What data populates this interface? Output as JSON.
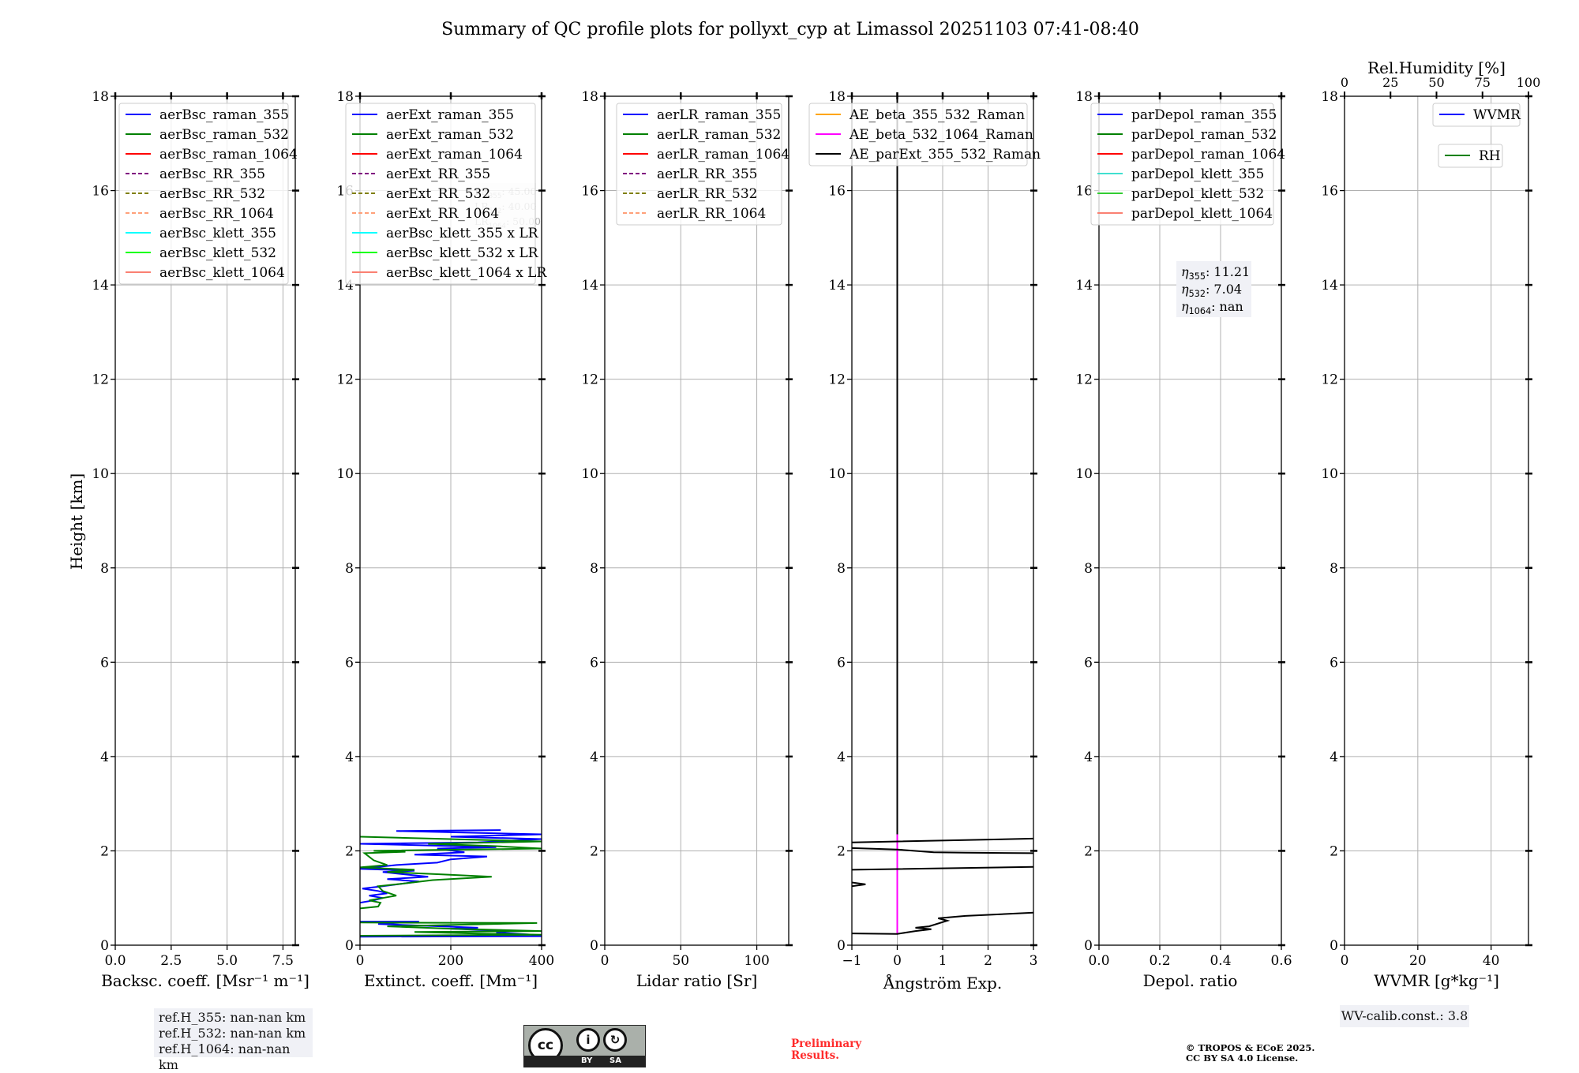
{
  "title": "Summary of QC profile plots for pollyxt_cyp at Limassol 20251103 07:41-08:40",
  "ylabel": "Height [km]",
  "chart_data": [
    {
      "type": "line",
      "xlabel": "Backsc. coeff. [Msr⁻¹ m⁻¹]",
      "xlim": [
        0,
        8.05
      ],
      "xticks": [
        0,
        2.5,
        5,
        7.5
      ],
      "xticklabels": [
        "0.0",
        "2.5",
        "5.0",
        "7.5"
      ],
      "ylim": [
        0,
        18
      ],
      "yticks": [
        0,
        2,
        4,
        6,
        8,
        10,
        12,
        14,
        16,
        18
      ],
      "grid": true,
      "legend_loc": "upper-left",
      "legend": [
        {
          "label": "aerBsc_raman_355",
          "color": "#0000ff",
          "dash": false
        },
        {
          "label": "aerBsc_raman_532",
          "color": "#008000",
          "dash": false
        },
        {
          "label": "aerBsc_raman_1064",
          "color": "#ff0000",
          "dash": false
        },
        {
          "label": "aerBsc_RR_355",
          "color": "#800080",
          "dash": true
        },
        {
          "label": "aerBsc_RR_532",
          "color": "#808000",
          "dash": true
        },
        {
          "label": "aerBsc_RR_1064",
          "color": "#ffa07a",
          "dash": true
        },
        {
          "label": "aerBsc_klett_355",
          "color": "#00ffff",
          "dash": false
        },
        {
          "label": "aerBsc_klett_532",
          "color": "#00ff00",
          "dash": false
        },
        {
          "label": "aerBsc_klett_1064",
          "color": "#fa8072",
          "dash": false
        }
      ],
      "series": []
    },
    {
      "type": "line",
      "xlabel": "Extinct. coeff. [Mm⁻¹]",
      "xlim": [
        0,
        400
      ],
      "xticks": [
        0,
        200,
        400
      ],
      "xticklabels": [
        "0",
        "200",
        "400"
      ],
      "ylim": [
        0,
        18
      ],
      "yticks": [
        0,
        2,
        4,
        6,
        8,
        10,
        12,
        14,
        16,
        18
      ],
      "grid": true,
      "legend_loc": "upper-left",
      "legend": [
        {
          "label": "aerExt_raman_355",
          "color": "#0000ff",
          "dash": false
        },
        {
          "label": "aerExt_raman_532",
          "color": "#008000",
          "dash": false
        },
        {
          "label": "aerExt_raman_1064",
          "color": "#ff0000",
          "dash": false
        },
        {
          "label": "aerExt_RR_355",
          "color": "#800080",
          "dash": true
        },
        {
          "label": "aerExt_RR_532",
          "color": "#808000",
          "dash": true
        },
        {
          "label": "aerExt_RR_1064",
          "color": "#ffa07a",
          "dash": true
        },
        {
          "label": "aerBsc_klett_355 x LR",
          "color": "#00ffff",
          "dash": false
        },
        {
          "label": "aerBsc_klett_532 x LR",
          "color": "#00ff00",
          "dash": false
        },
        {
          "label": "aerBsc_klett_1064 x LR",
          "color": "#fa8072",
          "dash": false
        }
      ],
      "annotation": [
        {
          "prefix": "LR",
          "sub": "355",
          "value": ": 45.00"
        },
        {
          "prefix": "LR",
          "sub": "532",
          "value": ": 40.00"
        },
        {
          "prefix": "LR",
          "sub": "1064",
          "value": ": 50.00"
        }
      ],
      "series": [
        {
          "name": "aerExt_raman_355",
          "color": "#0000ff",
          "points": [
            [
              0,
              0.18
            ],
            [
              400,
              0.19
            ],
            [
              380,
              0.22
            ],
            [
              300,
              0.27
            ],
            [
              330,
              0.3
            ],
            [
              200,
              0.35
            ],
            [
              260,
              0.37
            ],
            [
              120,
              0.42
            ],
            [
              40,
              0.45
            ],
            [
              130,
              0.5
            ],
            [
              0,
              0.5
            ],
            null,
            [
              0,
              0.9
            ],
            [
              30,
              0.95
            ],
            [
              50,
              1.0
            ],
            [
              20,
              1.05
            ],
            [
              60,
              1.1
            ],
            [
              40,
              1.15
            ],
            [
              5,
              1.2
            ],
            [
              50,
              1.25
            ],
            [
              130,
              1.35
            ],
            [
              60,
              1.4
            ],
            [
              150,
              1.45
            ],
            [
              50,
              1.55
            ],
            [
              120,
              1.58
            ],
            [
              0,
              1.62
            ],
            [
              80,
              1.7
            ],
            [
              170,
              1.75
            ],
            [
              200,
              1.82
            ],
            [
              280,
              1.88
            ],
            [
              120,
              1.92
            ],
            [
              230,
              1.97
            ],
            [
              170,
              2.05
            ],
            [
              300,
              2.08
            ],
            [
              0,
              2.15
            ],
            [
              260,
              2.18
            ],
            [
              400,
              2.25
            ],
            [
              200,
              2.3
            ],
            [
              400,
              2.35
            ],
            [
              80,
              2.42
            ],
            [
              310,
              2.44
            ]
          ]
        },
        {
          "name": "aerExt_raman_532",
          "color": "#008000",
          "points": [
            [
              0,
              0.2
            ],
            [
              400,
              0.22
            ],
            [
              250,
              0.25
            ],
            [
              120,
              0.28
            ],
            [
              400,
              0.3
            ],
            [
              200,
              0.35
            ],
            [
              60,
              0.4
            ],
            [
              390,
              0.47
            ],
            [
              0,
              0.48
            ],
            null,
            [
              0,
              0.78
            ],
            [
              40,
              0.82
            ],
            [
              45,
              0.9
            ],
            [
              20,
              0.95
            ],
            [
              80,
              1.05
            ],
            [
              50,
              1.15
            ],
            [
              40,
              1.25
            ],
            [
              90,
              1.3
            ],
            [
              160,
              1.38
            ],
            [
              290,
              1.45
            ],
            [
              180,
              1.5
            ],
            [
              60,
              1.55
            ],
            [
              120,
              1.6
            ],
            [
              0,
              1.65
            ],
            [
              60,
              1.7
            ],
            [
              30,
              1.8
            ],
            [
              10,
              1.95
            ],
            [
              100,
              1.98
            ],
            [
              30,
              2.0
            ],
            [
              400,
              2.05
            ],
            [
              300,
              2.1
            ],
            [
              150,
              2.15
            ],
            [
              400,
              2.2
            ],
            [
              0,
              2.3
            ]
          ]
        }
      ]
    },
    {
      "type": "line",
      "xlabel": "Lidar ratio [Sr]",
      "xlim": [
        0,
        121
      ],
      "xticks": [
        0,
        50,
        100
      ],
      "xticklabels": [
        "0",
        "50",
        "100"
      ],
      "ylim": [
        0,
        18
      ],
      "yticks": [
        0,
        2,
        4,
        6,
        8,
        10,
        12,
        14,
        16,
        18
      ],
      "grid": true,
      "legend_loc": "upper-right",
      "legend": [
        {
          "label": "aerLR_raman_355",
          "color": "#0000ff",
          "dash": false
        },
        {
          "label": "aerLR_raman_532",
          "color": "#008000",
          "dash": false
        },
        {
          "label": "aerLR_raman_1064",
          "color": "#ff0000",
          "dash": false
        },
        {
          "label": "aerLR_RR_355",
          "color": "#800080",
          "dash": true
        },
        {
          "label": "aerLR_RR_532",
          "color": "#808000",
          "dash": true
        },
        {
          "label": "aerLR_RR_1064",
          "color": "#ffa07a",
          "dash": true
        }
      ],
      "series": []
    },
    {
      "type": "line",
      "xlabel": "Ångström Exp.",
      "xlim": [
        -1,
        3
      ],
      "xticks": [
        -1,
        0,
        1,
        2,
        3
      ],
      "xticklabels": [
        "−1",
        "0",
        "1",
        "2",
        "3"
      ],
      "ylim": [
        0,
        18
      ],
      "yticks": [
        0,
        2,
        4,
        6,
        8,
        10,
        12,
        14,
        16,
        18
      ],
      "grid": true,
      "legend_loc": "upper-left",
      "legend": [
        {
          "label": "AE_beta_355_532_Raman",
          "color": "#ffa500",
          "dash": false
        },
        {
          "label": "AE_beta_532_1064_Raman",
          "color": "#ff00ff",
          "dash": false
        },
        {
          "label": "AE_parExt_355_532_Raman",
          "color": "#000000",
          "dash": false
        }
      ],
      "series": [
        {
          "name": "AE_beta_532_1064_Raman",
          "color": "#ff00ff",
          "points": [
            [
              0,
              0.25
            ],
            [
              0,
              2.35
            ]
          ]
        },
        {
          "name": "AE_parExt_355_532_Raman",
          "color": "#000000",
          "points": [
            [
              -1,
              0.25
            ],
            [
              0,
              0.24
            ],
            [
              0.4,
              0.3
            ],
            [
              0.75,
              0.34
            ],
            [
              0.4,
              0.37
            ],
            [
              0.7,
              0.4
            ],
            [
              1.1,
              0.52
            ],
            [
              0.9,
              0.57
            ],
            [
              1.5,
              0.62
            ],
            [
              3,
              0.69
            ],
            null,
            [
              -1,
              1.25
            ],
            [
              -0.7,
              1.29
            ],
            [
              -1,
              1.33
            ],
            null,
            [
              -1,
              1.6
            ],
            [
              3,
              1.66
            ],
            null,
            [
              3,
              1.95
            ],
            [
              1.5,
              1.96
            ],
            [
              0.8,
              1.97
            ],
            [
              0,
              2.03
            ],
            [
              -1,
              2.06
            ],
            null,
            [
              -1,
              2.18
            ],
            [
              3,
              2.26
            ],
            null,
            [
              0,
              2.35
            ],
            [
              0,
              18
            ]
          ]
        }
      ]
    },
    {
      "type": "line",
      "xlabel": "Depol. ratio",
      "xlim": [
        0,
        0.6
      ],
      "xticks": [
        0,
        0.2,
        0.4,
        0.6
      ],
      "xticklabels": [
        "0.0",
        "0.2",
        "0.4",
        "0.6"
      ],
      "ylim": [
        0,
        18
      ],
      "yticks": [
        0,
        2,
        4,
        6,
        8,
        10,
        12,
        14,
        16,
        18
      ],
      "grid": true,
      "legend_loc": "upper-left",
      "legend": [
        {
          "label": "parDepol_raman_355",
          "color": "#0000ff",
          "dash": false
        },
        {
          "label": "parDepol_raman_532",
          "color": "#008000",
          "dash": false
        },
        {
          "label": "parDepol_raman_1064",
          "color": "#ff0000",
          "dash": false
        },
        {
          "label": "parDepol_klett_355",
          "color": "#40e0d0",
          "dash": false
        },
        {
          "label": "parDepol_klett_532",
          "color": "#32cd32",
          "dash": false
        },
        {
          "label": "parDepol_klett_1064",
          "color": "#fa8072",
          "dash": false
        }
      ],
      "annotation": [
        {
          "prefix": "η",
          "sub": "355",
          "value": ": 11.21"
        },
        {
          "prefix": "η",
          "sub": "532",
          "value": ": 7.04"
        },
        {
          "prefix": "η",
          "sub": "1064",
          "value": ": nan"
        }
      ],
      "series": []
    },
    {
      "type": "line",
      "xlabel": "WVMR [g*kg⁻¹]",
      "xlim": [
        0,
        50.2
      ],
      "xticks": [
        0,
        20,
        40
      ],
      "xticklabels": [
        "0",
        "20",
        "40"
      ],
      "top_xlabel": "Rel.Humidity [%]",
      "top_xlim": [
        0,
        100
      ],
      "top_xticks": [
        0,
        25,
        50,
        75,
        100
      ],
      "top_xticklabels": [
        "0",
        "25",
        "50",
        "75",
        "100"
      ],
      "ylim": [
        0,
        18
      ],
      "yticks": [
        0,
        2,
        4,
        6,
        8,
        10,
        12,
        14,
        16,
        18
      ],
      "grid": true,
      "legend_loc": "upper-right",
      "legend": [
        {
          "label": "WVMR",
          "color": "#0000ff",
          "dash": false
        }
      ],
      "legend2": [
        {
          "label": "RH",
          "color": "#008000",
          "dash": false
        }
      ],
      "series": []
    }
  ],
  "footer": {
    "ref_heights": [
      "ref.H_355: nan-nan km",
      "ref.H_532: nan-nan km",
      "ref.H_1064: nan-nan km"
    ],
    "license_badge": {
      "cc": "cc",
      "by": "BY",
      "sa": "SA"
    },
    "preliminary": [
      "Preliminary",
      "Results."
    ],
    "copyright": [
      "© TROPOS & ECoE 2025.",
      "CC BY SA 4.0 License."
    ],
    "wv_calib": "WV-calib.const.: 3.8"
  }
}
